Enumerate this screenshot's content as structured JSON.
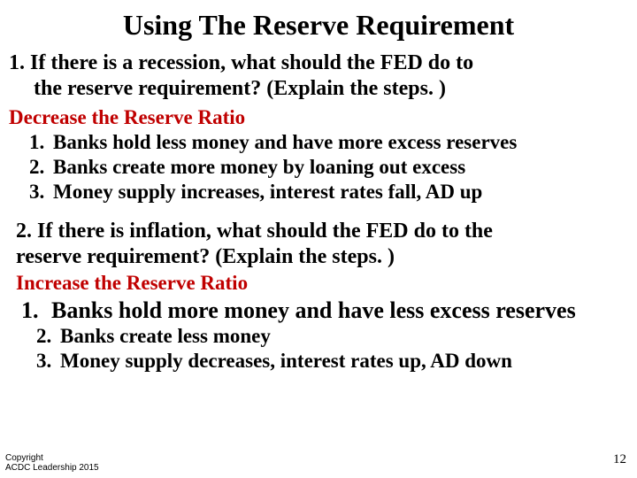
{
  "title": "Using The Reserve Requirement",
  "colors": {
    "text": "#000000",
    "accent": "#c00000",
    "background": "#ffffff"
  },
  "typography": {
    "title_fontsize": 32,
    "body_fontsize": 23,
    "font_family": "Times New Roman",
    "weight": "bold"
  },
  "section1": {
    "question_line1": "1. If there is a recession, what should the FED do to",
    "question_line2": "the reserve requirement? (Explain the steps. )",
    "answer": "Decrease the Reserve Ratio",
    "steps": [
      "Banks hold less money and have more excess reserves",
      "Banks create more money by loaning out excess",
      "Money supply increases, interest rates fall, AD up"
    ]
  },
  "section2": {
    "question_line1": "2. If there is inflation, what should the FED do to the",
    "question_line2": "reserve requirement? (Explain the steps. )",
    "answer": "Increase the Reserve Ratio",
    "step1_num": "1.",
    "step1_text": "Banks hold more money and have less excess reserves",
    "steps_rest": [
      "Banks create less money",
      "Money supply decreases, interest rates up, AD down"
    ]
  },
  "copyright_line1": "Copyright",
  "copyright_line2": "ACDC Leadership 2015",
  "page_number": "12"
}
